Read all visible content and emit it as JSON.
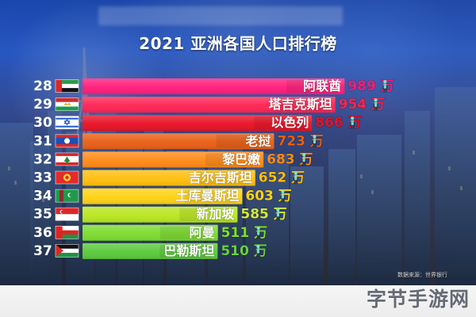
{
  "title": "2021 亚洲各国人口排行榜",
  "source": "数据来源：世界银行",
  "watermark": "字节手游网",
  "chart_data": {
    "type": "bar",
    "title": "2021 亚洲各国人口排行榜",
    "unit": "万",
    "categories": [
      "阿联酋",
      "塔吉克斯坦",
      "以色列",
      "老挝",
      "黎巴嫩",
      "吉尔吉斯坦",
      "土库曼斯坦",
      "新加坡",
      "阿曼",
      "巴勒斯坦"
    ],
    "ranks": [
      28,
      29,
      30,
      31,
      32,
      33,
      34,
      35,
      36,
      37
    ],
    "values": [
      989,
      954,
      866,
      723,
      683,
      652,
      603,
      585,
      511,
      510
    ],
    "value_labels": [
      "989 万",
      "954 万",
      "866 万",
      "723 万",
      "683 万",
      "652 万",
      "603 万",
      "585 万",
      "511 万",
      "510 万"
    ],
    "xlim": [
      0,
      1000
    ],
    "bar_colors": [
      "#ff1d7b",
      "#ff2454",
      "#e91226",
      "#e95f16",
      "#ff8a18",
      "#ffbf0d",
      "#ffd215",
      "#b8e61f",
      "#7cdc2e",
      "#5bc93c"
    ],
    "label_colors": [
      "#ff1d7b",
      "#ff2454",
      "#e91226",
      "#e95f16",
      "#ff8a18",
      "#ffbf0d",
      "#ffd215",
      "#d6eb36",
      "#7fe028",
      "#69d13f"
    ],
    "flags": [
      "uae-flag-icon",
      "tajikistan-flag-icon",
      "israel-flag-icon",
      "laos-flag-icon",
      "lebanon-flag-icon",
      "kyrgyzstan-flag-icon",
      "turkmenistan-flag-icon",
      "singapore-flag-icon",
      "oman-flag-icon",
      "palestine-flag-icon"
    ],
    "person_icon": "person-icon",
    "grid": false,
    "legend": "none"
  }
}
